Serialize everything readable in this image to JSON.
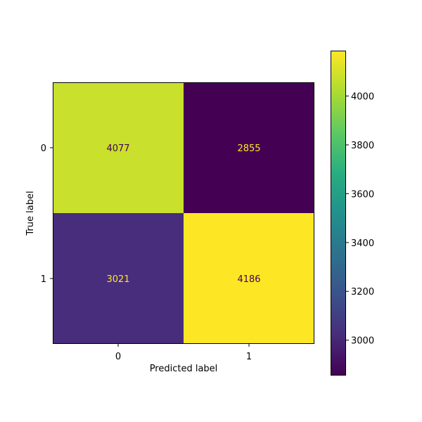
{
  "chart_data": {
    "type": "heatmap",
    "title": "",
    "xlabel": "Predicted label",
    "ylabel": "True label",
    "x_categories": [
      "0",
      "1"
    ],
    "y_categories": [
      "0",
      "1"
    ],
    "matrix": [
      [
        4077,
        2855
      ],
      [
        3021,
        4186
      ]
    ],
    "colormap": "viridis",
    "colorbar": {
      "ticks": [
        3000,
        3200,
        3400,
        3600,
        3800,
        4000
      ],
      "range": [
        2855,
        4186
      ]
    },
    "text_colors": {
      "on_light": "#440154",
      "on_dark": "#fde725"
    }
  }
}
